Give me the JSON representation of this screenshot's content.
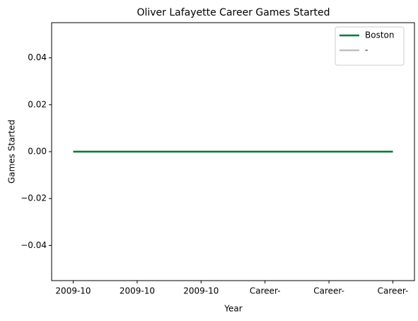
{
  "chart_data": {
    "type": "line",
    "title": "Oliver Lafayette Career Games Started",
    "xlabel": "Year",
    "ylabel": "Games Started",
    "categories": [
      "2009-10",
      "2009-10",
      "2009-10",
      "Career-",
      "Career-",
      "Career-"
    ],
    "series": [
      {
        "name": "-",
        "color": "#c0c0c0",
        "values": [
          0,
          0,
          0,
          0,
          0,
          0
        ]
      },
      {
        "name": "Boston",
        "color": "#007a33",
        "values": [
          0,
          0,
          0,
          0,
          0,
          0
        ]
      }
    ],
    "legend_order": [
      "Boston",
      "-"
    ],
    "ylim": [
      -0.055,
      0.055
    ],
    "yticks": [
      {
        "value": -0.04,
        "label": "−0.04"
      },
      {
        "value": -0.02,
        "label": "−0.02"
      },
      {
        "value": 0,
        "label": "0.00"
      },
      0.02,
      0.04
    ],
    "legend": "upper right",
    "grid": false
  }
}
